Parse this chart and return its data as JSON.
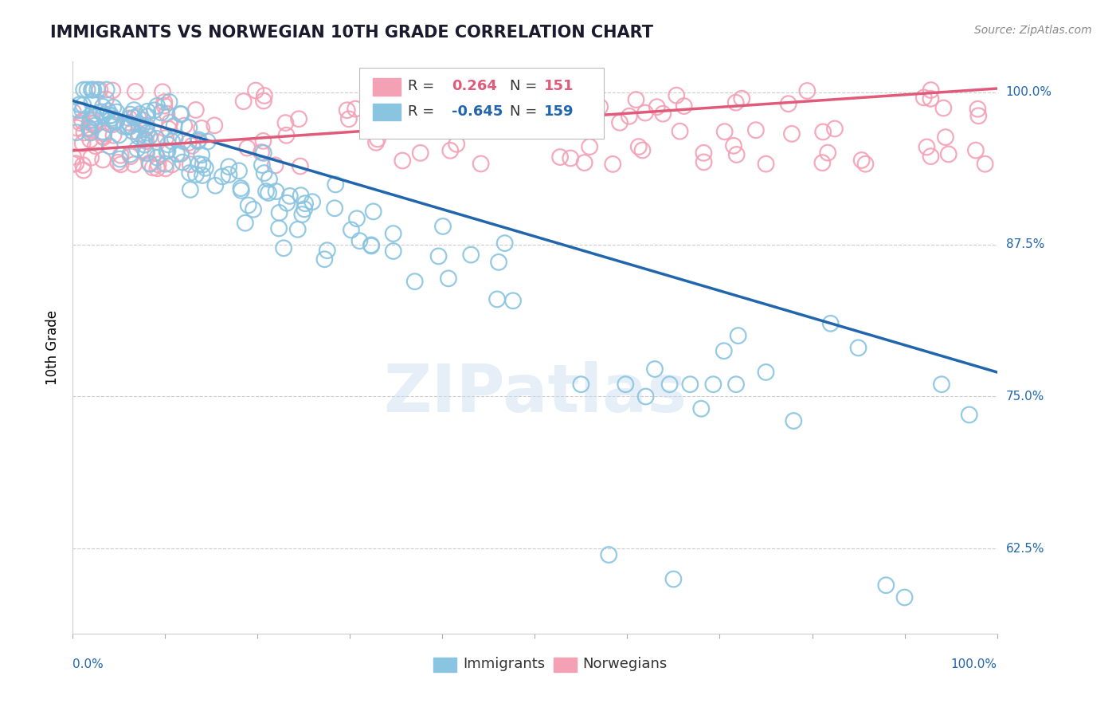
{
  "title": "IMMIGRANTS VS NORWEGIAN 10TH GRADE CORRELATION CHART",
  "source": "Source: ZipAtlas.com",
  "ylabel": "10th Grade",
  "legend_immigrants": "Immigrants",
  "legend_norwegians": "Norwegians",
  "R_immigrants": -0.645,
  "N_immigrants": 159,
  "R_norwegians": 0.264,
  "N_norwegians": 151,
  "blue_color": "#89c4e1",
  "pink_color": "#f4a0b5",
  "blue_line_color": "#2166ac",
  "pink_line_color": "#e05a7a",
  "background_color": "#ffffff",
  "grid_color": "#cccccc",
  "y_tick_values": [
    0.625,
    0.75,
    0.875,
    1.0
  ],
  "y_tick_labels": [
    "62.5%",
    "75.0%",
    "87.5%",
    "100.0%"
  ],
  "ylim_min": 0.555,
  "ylim_max": 1.025,
  "xlim_min": 0.0,
  "xlim_max": 1.0,
  "imm_line_x0": 0.0,
  "imm_line_x1": 1.0,
  "imm_line_y0": 0.993,
  "imm_line_y1": 0.77,
  "nor_line_x0": 0.0,
  "nor_line_x1": 1.0,
  "nor_line_y0": 0.952,
  "nor_line_y1": 1.003,
  "watermark_text": "ZIPatlas",
  "title_fontsize": 15,
  "source_fontsize": 10,
  "ylabel_fontsize": 12,
  "tick_label_fontsize": 11,
  "legend_fontsize": 13
}
